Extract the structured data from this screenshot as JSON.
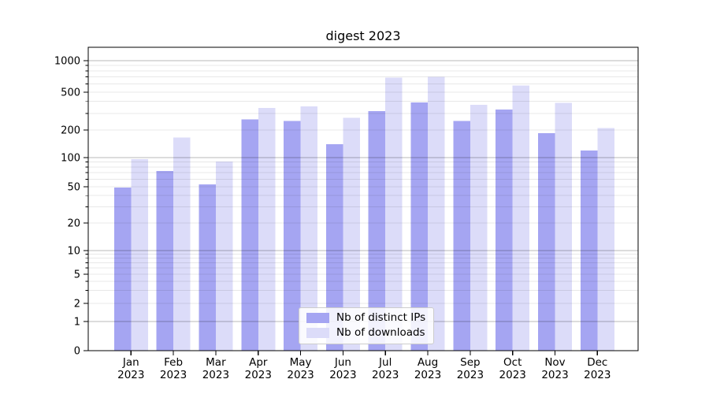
{
  "title": "digest 2023",
  "chart_data": {
    "type": "bar",
    "title": "digest 2023",
    "xlabel": "",
    "ylabel": "",
    "yscale": "symlog",
    "ylim": [
      0,
      1350
    ],
    "yticks": [
      0,
      1,
      2,
      5,
      10,
      20,
      50,
      100,
      200,
      500,
      1000
    ],
    "grid": "both",
    "legend_position": "lower center",
    "categories": [
      "Jan 2023",
      "Feb 2023",
      "Mar 2023",
      "Apr 2023",
      "May 2023",
      "Jun 2023",
      "Jul 2023",
      "Aug 2023",
      "Sep 2023",
      "Oct 2023",
      "Nov 2023",
      "Dec 2023"
    ],
    "series": [
      {
        "name": "Nb of distinct IPs",
        "color": "#a5a5f2",
        "values": [
          49,
          73,
          53,
          260,
          250,
          140,
          315,
          390,
          250,
          330,
          185,
          120
        ]
      },
      {
        "name": "Nb of downloads",
        "color": "#dcdcf9",
        "values": [
          96,
          165,
          91,
          340,
          355,
          270,
          690,
          700,
          370,
          580,
          385,
          210
        ]
      }
    ]
  },
  "colors": {
    "major_grid": "rgba(0,0,0,0.28)",
    "minor_grid": "rgba(0,0,0,0.09)",
    "axis": "#000000"
  }
}
